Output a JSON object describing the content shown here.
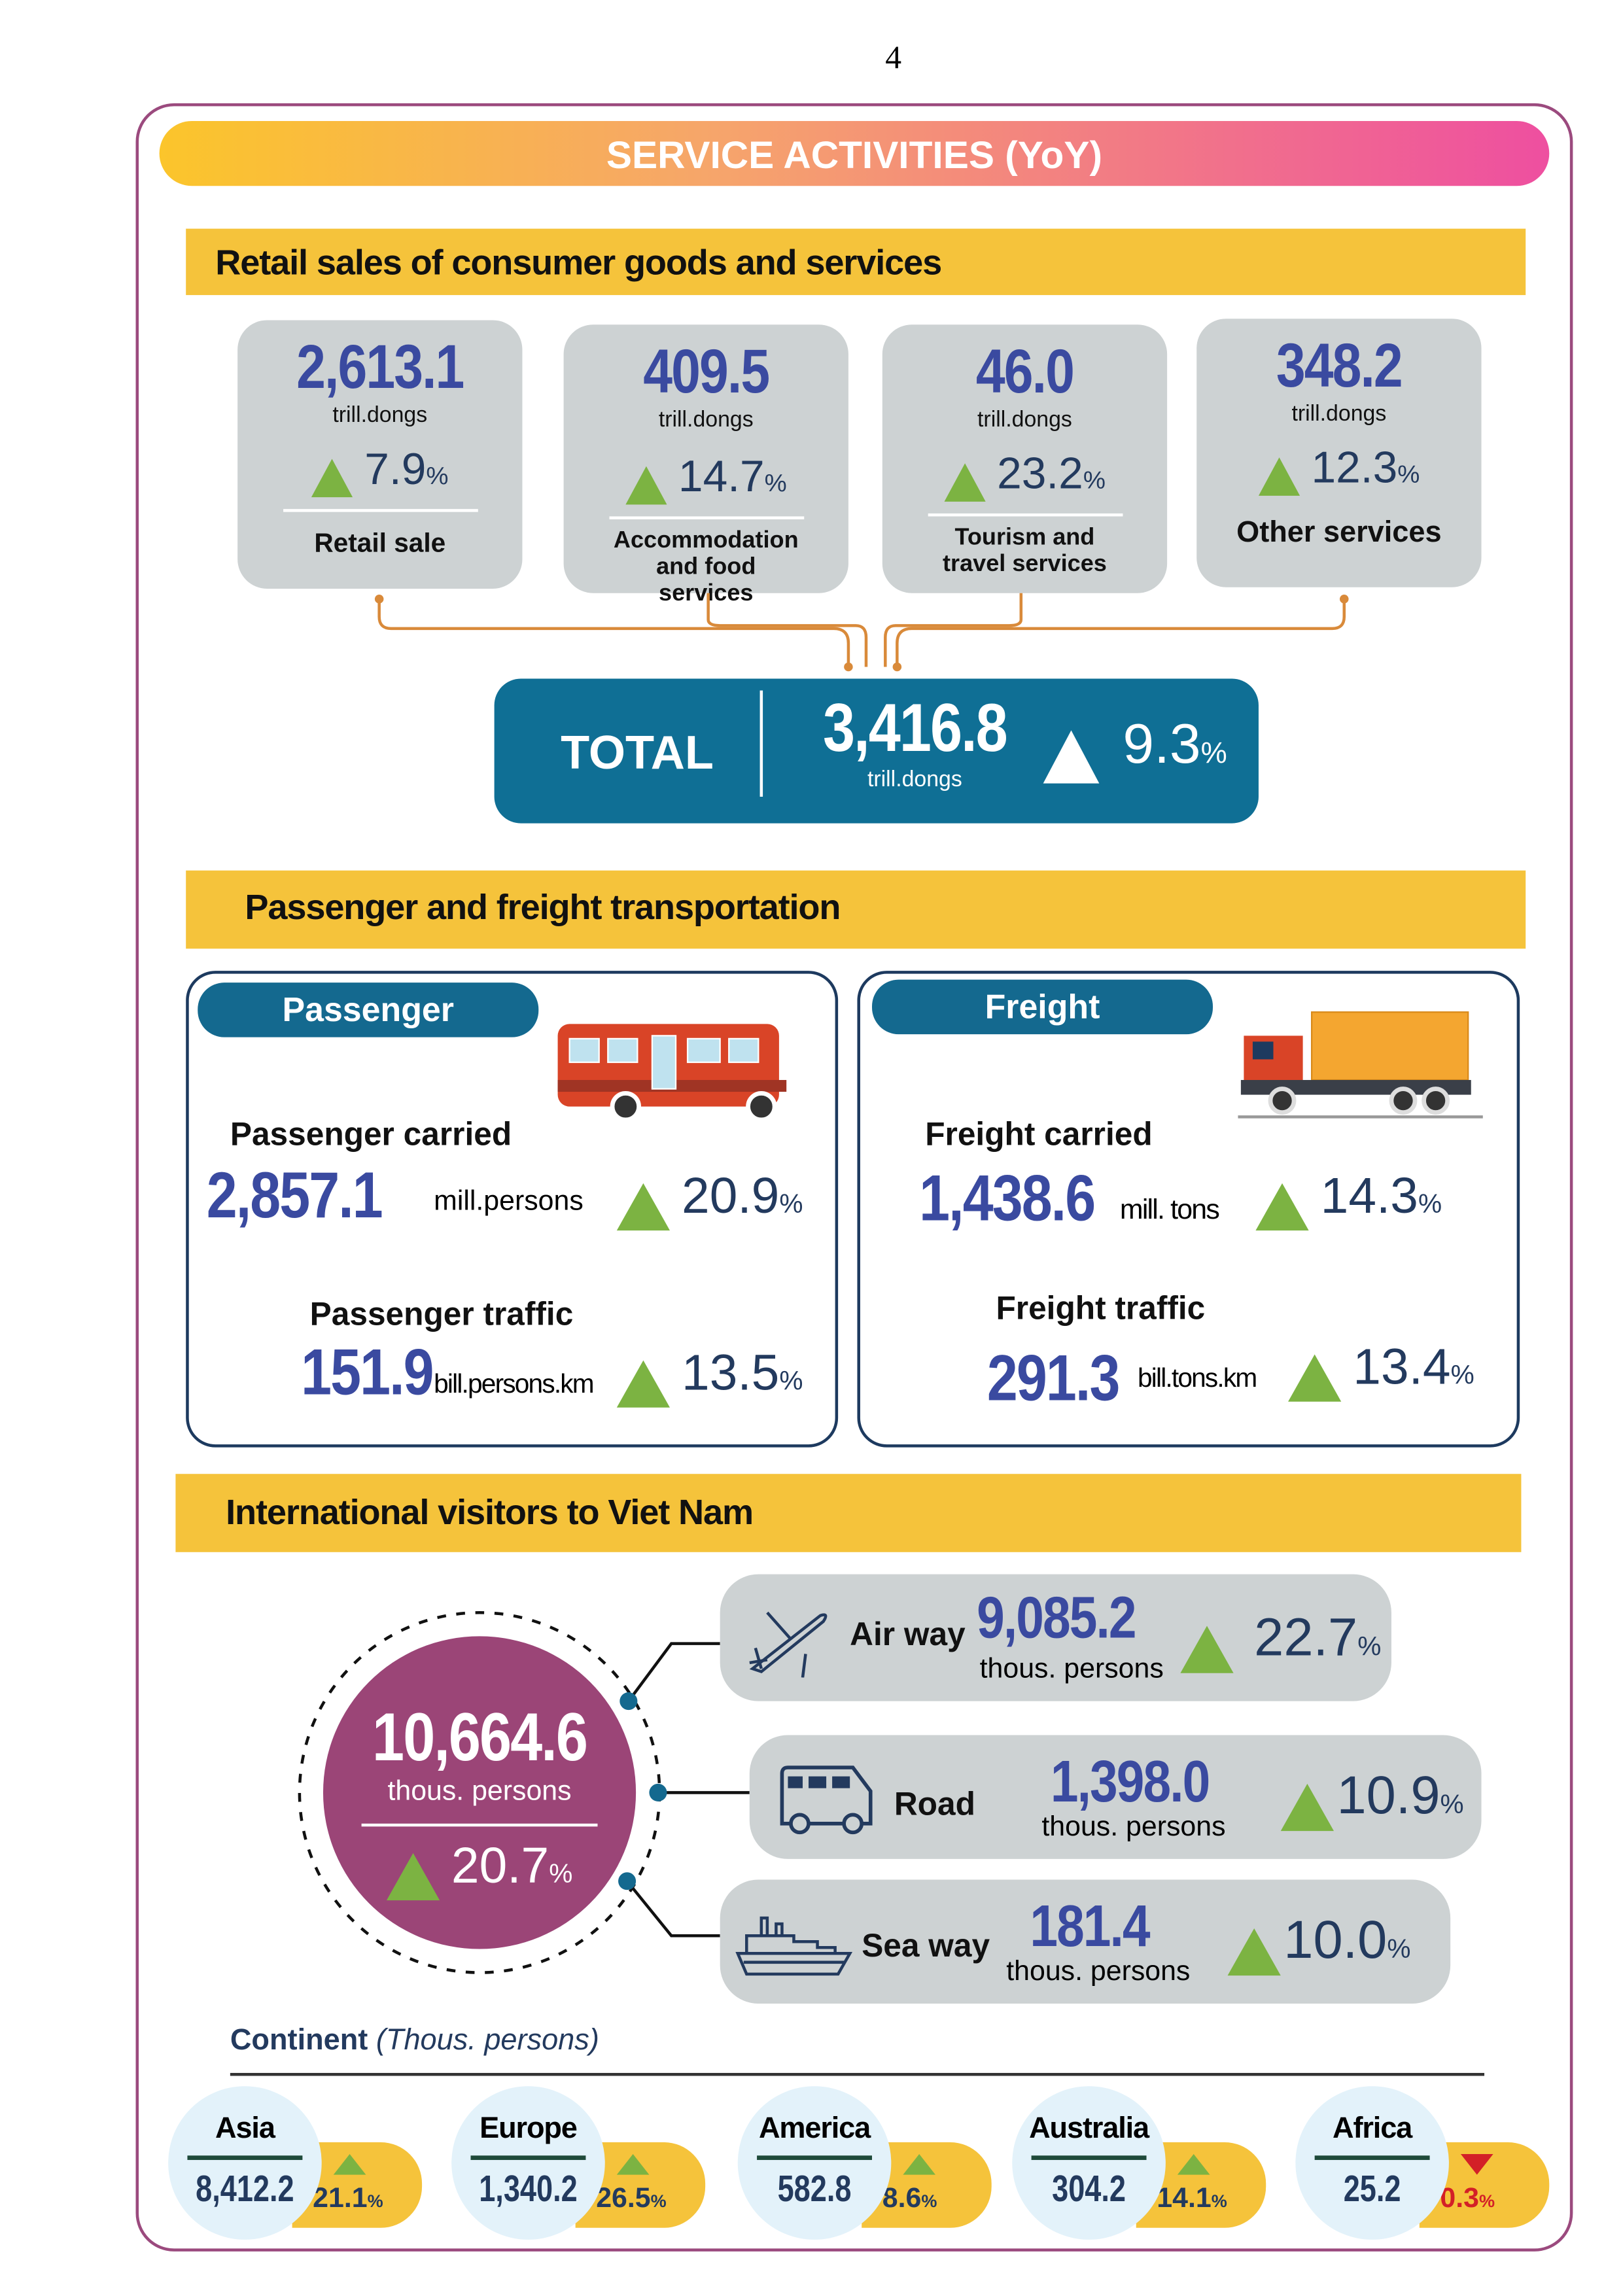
{
  "page_number": "4",
  "header": {
    "title": "SERVICE ACTIVITIES (YoY)"
  },
  "retail": {
    "section_title": "Retail sales of consumer goods and services",
    "cards": [
      {
        "value": "2,613.1",
        "unit": "trill.dongs",
        "growth": "7.9",
        "pct": "%",
        "label": "Retail sale"
      },
      {
        "value": "409.5",
        "unit": "trill.dongs",
        "growth": "14.7",
        "pct": "%",
        "label": "Accommodation and food services"
      },
      {
        "value": "46.0",
        "unit": "trill.dongs",
        "growth": "23.2",
        "pct": "%",
        "label": "Tourism and travel services"
      },
      {
        "value": "348.2",
        "unit": "trill.dongs",
        "growth": "12.3",
        "pct": "%",
        "label": "Other services"
      }
    ],
    "total": {
      "label": "TOTAL",
      "value": "3,416.8",
      "unit": "trill.dongs",
      "growth": "9.3",
      "pct": "%"
    }
  },
  "transport": {
    "section_title": "Passenger and freight transportation",
    "passenger": {
      "tab": "Passenger",
      "carried_label": "Passenger carried",
      "carried_value": "2,857.1",
      "carried_unit": "mill.persons",
      "carried_growth": "20.9",
      "traffic_label": "Passenger traffic",
      "traffic_value": "151.9",
      "traffic_unit": "bill.persons.km",
      "traffic_growth": "13.5",
      "pct": "%"
    },
    "freight": {
      "tab": "Freight",
      "carried_label": "Freight carried",
      "carried_value": "1,438.6",
      "carried_unit": "mill. tons",
      "carried_growth": "14.3",
      "traffic_label": "Freight traffic",
      "traffic_value": "291.3",
      "traffic_unit": "bill.tons.km",
      "traffic_growth": "13.4",
      "pct": "%"
    }
  },
  "visitors": {
    "section_title": "International visitors to Viet Nam",
    "total": {
      "value": "10,664.6",
      "unit": "thous. persons",
      "growth": "20.7",
      "pct": "%"
    },
    "modes": [
      {
        "icon": "airplane-icon",
        "label": "Air way",
        "value": "9,085.2",
        "unit": "thous. persons",
        "growth": "22.7",
        "pct": "%"
      },
      {
        "icon": "van-icon",
        "label": "Road",
        "value": "1,398.0",
        "unit": "thous. persons",
        "growth": "10.9",
        "pct": "%"
      },
      {
        "icon": "ship-icon",
        "label": "Sea way",
        "value": "181.4",
        "unit": "thous. persons",
        "growth": "10.0",
        "pct": "%"
      }
    ],
    "continent_title": "Continent",
    "continent_unit": "(Thous. persons)",
    "continents": [
      {
        "name": "Asia",
        "value": "8,412.2",
        "growth": "21.1",
        "pct": "%",
        "direction": "up"
      },
      {
        "name": "Europe",
        "value": "1,340.2",
        "growth": "26.5",
        "pct": "%",
        "direction": "up"
      },
      {
        "name": "America",
        "value": "582.8",
        "growth": "8.6",
        "pct": "%",
        "direction": "up"
      },
      {
        "name": "Australia",
        "value": "304.2",
        "growth": "14.1",
        "pct": "%",
        "direction": "up"
      },
      {
        "name": "Africa",
        "value": "25.2",
        "growth": "0.3",
        "pct": "%",
        "direction": "down"
      }
    ]
  },
  "colors": {
    "frame": "#9b4a7e",
    "section": "#f5c33b",
    "teal": "#0f6f95",
    "value_blue": "#3a4aa0",
    "up": "#7cb342",
    "down": "#d32027",
    "circle": "#9b4577"
  }
}
